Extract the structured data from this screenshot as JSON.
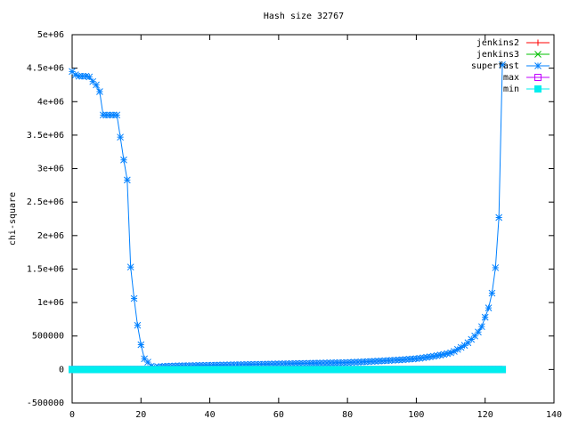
{
  "chart_data": {
    "type": "line",
    "title": "Hash size 32767",
    "y_label": "chi-square",
    "x": [
      0,
      1,
      2,
      3,
      4,
      5,
      6,
      7,
      8,
      9,
      10,
      11,
      12,
      13,
      14,
      15,
      16,
      17,
      18,
      19,
      20,
      21,
      22,
      23,
      24,
      25,
      26,
      27,
      28,
      29,
      30,
      31,
      32,
      33,
      34,
      35,
      36,
      37,
      38,
      39,
      40,
      41,
      42,
      43,
      44,
      45,
      46,
      47,
      48,
      49,
      50,
      51,
      52,
      53,
      54,
      55,
      56,
      57,
      58,
      59,
      60,
      61,
      62,
      63,
      64,
      65,
      66,
      67,
      68,
      69,
      70,
      71,
      72,
      73,
      74,
      75,
      76,
      77,
      78,
      79,
      80,
      81,
      82,
      83,
      84,
      85,
      86,
      87,
      88,
      89,
      90,
      91,
      92,
      93,
      94,
      95,
      96,
      97,
      98,
      99,
      100,
      101,
      102,
      103,
      104,
      105,
      106,
      107,
      108,
      109,
      110,
      111,
      112,
      113,
      114,
      115,
      116,
      117,
      118,
      119,
      120,
      121,
      122,
      123,
      124,
      125
    ],
    "series": [
      {
        "name": "jenkins2",
        "color": "#ff0000",
        "marker": "plus",
        "values": [
          0,
          0,
          0,
          0,
          0,
          0,
          0,
          0,
          0,
          0,
          0,
          0,
          0,
          0,
          0,
          0,
          0,
          0,
          0,
          0,
          0,
          0,
          0,
          0,
          0,
          0,
          0,
          0,
          0,
          0,
          0,
          0,
          0,
          0,
          0,
          0,
          0,
          0,
          0,
          0,
          0,
          0,
          0,
          0,
          0,
          0,
          0,
          0,
          0,
          0,
          0,
          0,
          0,
          0,
          0,
          0,
          0,
          0,
          0,
          0,
          0,
          0,
          0,
          0,
          0,
          0,
          0,
          0,
          0,
          0,
          0,
          0,
          0,
          0,
          0,
          0,
          0,
          0,
          0,
          0,
          0,
          0,
          0,
          0,
          0,
          0,
          0,
          0,
          0,
          0,
          0,
          0,
          0,
          0,
          0,
          0,
          0,
          0,
          0,
          0,
          0,
          0,
          0,
          0,
          0,
          0,
          0,
          0,
          0,
          0,
          0,
          0,
          0,
          0,
          0,
          0,
          0,
          0,
          0,
          0,
          0,
          0,
          0,
          0,
          0,
          0
        ]
      },
      {
        "name": "jenkins3",
        "color": "#00c000",
        "marker": "cross",
        "values": [
          0,
          0,
          0,
          0,
          0,
          0,
          0,
          0,
          0,
          0,
          0,
          0,
          0,
          0,
          0,
          0,
          0,
          0,
          0,
          0,
          0,
          0,
          0,
          0,
          0,
          0,
          0,
          0,
          0,
          0,
          0,
          0,
          0,
          0,
          0,
          0,
          0,
          0,
          0,
          0,
          0,
          0,
          0,
          0,
          0,
          0,
          0,
          0,
          0,
          0,
          0,
          0,
          0,
          0,
          0,
          0,
          0,
          0,
          0,
          0,
          0,
          0,
          0,
          0,
          0,
          0,
          0,
          0,
          0,
          0,
          0,
          0,
          0,
          0,
          0,
          0,
          0,
          0,
          0,
          0,
          0,
          0,
          0,
          0,
          0,
          0,
          0,
          0,
          0,
          0,
          0,
          0,
          0,
          0,
          0,
          0,
          0,
          0,
          0,
          0,
          0,
          0,
          0,
          0,
          0,
          0,
          0,
          0,
          0,
          0,
          0,
          0,
          0,
          0,
          0,
          0,
          0,
          0,
          0,
          0,
          0,
          0,
          0,
          0,
          0,
          0
        ]
      },
      {
        "name": "superfast",
        "color": "#0080ff",
        "marker": "star",
        "values": [
          4450000,
          4400000,
          4380000,
          4380000,
          4380000,
          4370000,
          4300000,
          4250000,
          4150000,
          3800000,
          3800000,
          3800000,
          3800000,
          3800000,
          3470000,
          3130000,
          2830000,
          1530000,
          1060000,
          660000,
          370000,
          160000,
          110000,
          50000,
          30000,
          40000,
          45000,
          48000,
          50000,
          52000,
          54000,
          55000,
          56000,
          57000,
          58000,
          59000,
          60000,
          61000,
          62000,
          63000,
          64000,
          65000,
          66000,
          67000,
          68000,
          69000,
          70000,
          71000,
          72000,
          73000,
          74000,
          75000,
          76000,
          77000,
          78000,
          79000,
          80000,
          81000,
          82000,
          83000,
          84000,
          85000,
          86000,
          87000,
          88000,
          89000,
          90000,
          91000,
          92000,
          93000,
          94000,
          95000,
          96000,
          97000,
          98000,
          99000,
          100000,
          101000,
          102000,
          103000,
          104000,
          107000,
          109000,
          111000,
          113000,
          116000,
          118000,
          121000,
          123000,
          126000,
          128000,
          131000,
          134000,
          137000,
          140000,
          143000,
          146000,
          150000,
          154000,
          158000,
          162000,
          168000,
          175000,
          182000,
          190000,
          198000,
          207000,
          216000,
          226000,
          237000,
          250000,
          270000,
          300000,
          330000,
          360000,
          400000,
          450000,
          500000,
          560000,
          640000,
          780000,
          920000,
          1140000,
          1520000,
          2270000,
          4550000
        ]
      },
      {
        "name": "max",
        "color": "#c000ff",
        "marker": "square",
        "values": [
          0,
          0,
          0,
          0,
          0,
          0,
          0,
          0,
          0,
          0,
          0,
          0,
          0,
          0,
          0,
          0,
          0,
          0,
          0,
          0,
          0,
          0,
          0,
          0,
          0,
          0,
          0,
          0,
          0,
          0,
          0,
          0,
          0,
          0,
          0,
          0,
          0,
          0,
          0,
          0,
          0,
          0,
          0,
          0,
          0,
          0,
          0,
          0,
          0,
          0,
          0,
          0,
          0,
          0,
          0,
          0,
          0,
          0,
          0,
          0,
          0,
          0,
          0,
          0,
          0,
          0,
          0,
          0,
          0,
          0,
          0,
          0,
          0,
          0,
          0,
          0,
          0,
          0,
          0,
          0,
          0,
          0,
          0,
          0,
          0,
          0,
          0,
          0,
          0,
          0,
          0,
          0,
          0,
          0,
          0,
          0,
          0,
          0,
          0,
          0,
          0,
          0,
          0,
          0,
          0,
          0,
          0,
          0,
          0,
          0,
          0,
          0,
          0,
          0,
          0,
          0,
          0,
          0,
          0,
          0,
          0,
          0,
          0,
          0,
          0,
          0
        ]
      },
      {
        "name": "min",
        "color": "#00eeee",
        "marker": "filled-square",
        "values": [
          0,
          0,
          0,
          0,
          0,
          0,
          0,
          0,
          0,
          0,
          0,
          0,
          0,
          0,
          0,
          0,
          0,
          0,
          0,
          0,
          0,
          0,
          0,
          0,
          0,
          0,
          0,
          0,
          0,
          0,
          0,
          0,
          0,
          0,
          0,
          0,
          0,
          0,
          0,
          0,
          0,
          0,
          0,
          0,
          0,
          0,
          0,
          0,
          0,
          0,
          0,
          0,
          0,
          0,
          0,
          0,
          0,
          0,
          0,
          0,
          0,
          0,
          0,
          0,
          0,
          0,
          0,
          0,
          0,
          0,
          0,
          0,
          0,
          0,
          0,
          0,
          0,
          0,
          0,
          0,
          0,
          0,
          0,
          0,
          0,
          0,
          0,
          0,
          0,
          0,
          0,
          0,
          0,
          0,
          0,
          0,
          0,
          0,
          0,
          0,
          0,
          0,
          0,
          0,
          0,
          0,
          0,
          0,
          0,
          0,
          0,
          0,
          0,
          0,
          0,
          0,
          0,
          0,
          0,
          0,
          0,
          0,
          0,
          0,
          0,
          0
        ]
      }
    ],
    "xlim": [
      0,
      140
    ],
    "xticks": [
      0,
      20,
      40,
      60,
      80,
      100,
      120,
      140
    ],
    "ylim": [
      -500000,
      5000000
    ],
    "yticks": [
      -500000,
      0,
      500000,
      {
        "value": 1000000,
        "label": "1e+06"
      },
      {
        "value": 1500000,
        "label": "1.5e+06"
      },
      {
        "value": 2000000,
        "label": "2e+06"
      },
      {
        "value": 2500000,
        "label": "2.5e+06"
      },
      {
        "value": 3000000,
        "label": "3e+06"
      },
      {
        "value": 3500000,
        "label": "3.5e+06"
      },
      {
        "value": 4000000,
        "label": "4e+06"
      },
      {
        "value": 4500000,
        "label": "4.5e+06"
      },
      {
        "value": 5000000,
        "label": "5e+06"
      }
    ],
    "legend": "top-right",
    "grid": false
  }
}
